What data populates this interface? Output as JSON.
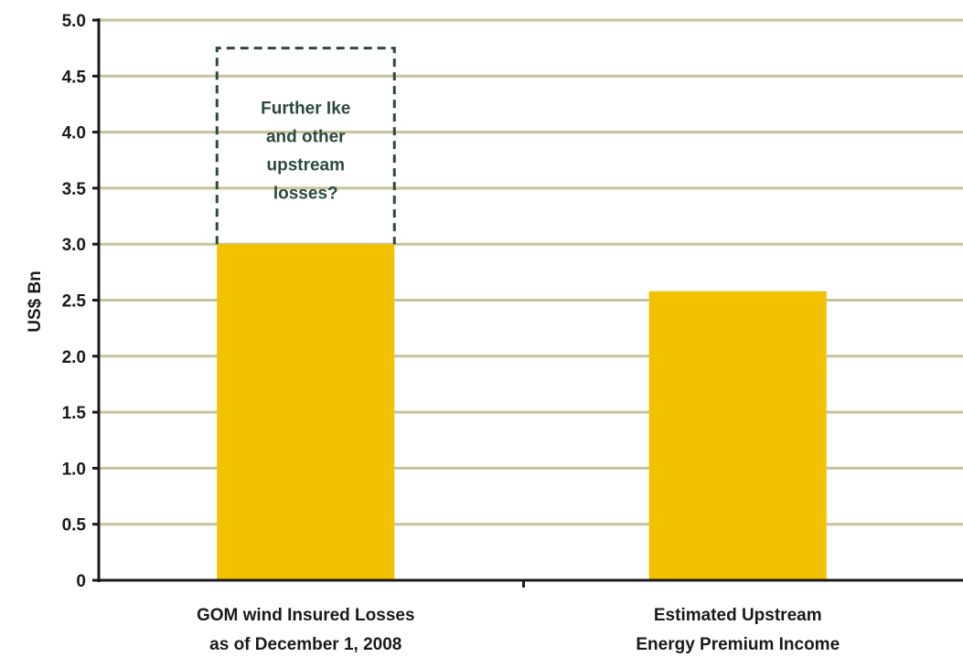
{
  "chart_data": {
    "type": "bar",
    "title": "",
    "xlabel": "",
    "ylabel": "US$ Bn",
    "ylim": [
      0,
      5.0
    ],
    "yticks": [
      "0",
      "0.5",
      "1.0",
      "1.5",
      "2.0",
      "2.5",
      "3.0",
      "3.5",
      "4.0",
      "4.5",
      "5.0"
    ],
    "grid": true,
    "categories": [
      [
        "GOM wind Insured Losses",
        "as of December 1, 2008"
      ],
      [
        "Estimated Upstream",
        "Energy Premium Income"
      ]
    ],
    "values": [
      3.0,
      2.58
    ],
    "annotation": {
      "category_index": 0,
      "from": 3.0,
      "to": 4.75,
      "style": "dashed-box",
      "lines": [
        "Further Ike",
        "and other",
        "upstream",
        "losses?"
      ]
    }
  },
  "colors": {
    "bar": "#f2c200",
    "grid": "#c9c19a",
    "axis": "#1a1a1a",
    "annotation_border": "#2b4a3c",
    "annotation_text": "#2b4a3c"
  }
}
